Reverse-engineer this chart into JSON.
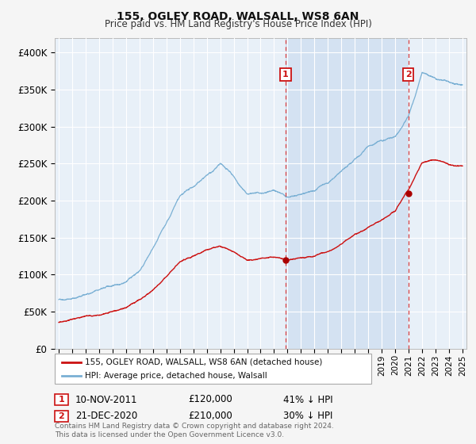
{
  "title": "155, OGLEY ROAD, WALSALL, WS8 6AN",
  "subtitle": "Price paid vs. HM Land Registry's House Price Index (HPI)",
  "background_color": "#f5f5f5",
  "plot_bg_color": "#e8f0f8",
  "ylim": [
    0,
    420000
  ],
  "yticks": [
    0,
    50000,
    100000,
    150000,
    200000,
    250000,
    300000,
    350000,
    400000
  ],
  "ytick_labels": [
    "£0",
    "£50K",
    "£100K",
    "£150K",
    "£200K",
    "£250K",
    "£300K",
    "£350K",
    "£400K"
  ],
  "xlim_start": 1994.7,
  "xlim_end": 2025.3,
  "sale1_date": "10-NOV-2011",
  "sale1_price": 120000,
  "sale1_pct": "41% ↓ HPI",
  "sale1_year": 2011.86,
  "sale2_date": "21-DEC-2020",
  "sale2_price": 210000,
  "sale2_pct": "30% ↓ HPI",
  "sale2_year": 2020.97,
  "legend_line1": "155, OGLEY ROAD, WALSALL, WS8 6AN (detached house)",
  "legend_line2": "HPI: Average price, detached house, Walsall",
  "footnote": "Contains HM Land Registry data © Crown copyright and database right 2024.\nThis data is licensed under the Open Government Licence v3.0.",
  "hpi_color": "#7ab0d4",
  "property_color": "#cc1111",
  "marker_color": "#aa0000",
  "vline_color": "#dd4444",
  "annotation_box_color": "#cc1111",
  "shade_color": "#ccddf0",
  "hpi_keypoints": [
    [
      1995,
      75000
    ],
    [
      1996,
      78000
    ],
    [
      1997,
      82000
    ],
    [
      1998,
      88000
    ],
    [
      1999,
      93000
    ],
    [
      2000,
      100000
    ],
    [
      2001,
      115000
    ],
    [
      2002,
      145000
    ],
    [
      2003,
      175000
    ],
    [
      2004,
      210000
    ],
    [
      2005,
      220000
    ],
    [
      2006,
      235000
    ],
    [
      2007,
      250000
    ],
    [
      2008,
      230000
    ],
    [
      2009,
      205000
    ],
    [
      2010,
      205000
    ],
    [
      2011,
      210000
    ],
    [
      2012,
      200000
    ],
    [
      2013,
      205000
    ],
    [
      2014,
      210000
    ],
    [
      2015,
      220000
    ],
    [
      2016,
      235000
    ],
    [
      2017,
      250000
    ],
    [
      2018,
      265000
    ],
    [
      2019,
      275000
    ],
    [
      2020,
      280000
    ],
    [
      2021,
      310000
    ],
    [
      2022,
      370000
    ],
    [
      2023,
      360000
    ],
    [
      2024,
      355000
    ],
    [
      2025,
      350000
    ]
  ],
  "prop_keypoints": [
    [
      1995,
      40000
    ],
    [
      1996,
      43000
    ],
    [
      1997,
      47000
    ],
    [
      1998,
      50000
    ],
    [
      1999,
      54000
    ],
    [
      2000,
      58000
    ],
    [
      2001,
      68000
    ],
    [
      2002,
      82000
    ],
    [
      2003,
      100000
    ],
    [
      2004,
      120000
    ],
    [
      2005,
      128000
    ],
    [
      2006,
      135000
    ],
    [
      2007,
      140000
    ],
    [
      2008,
      130000
    ],
    [
      2009,
      118000
    ],
    [
      2010,
      118000
    ],
    [
      2011,
      120000
    ],
    [
      2012,
      115000
    ],
    [
      2013,
      118000
    ],
    [
      2014,
      122000
    ],
    [
      2015,
      128000
    ],
    [
      2016,
      138000
    ],
    [
      2017,
      152000
    ],
    [
      2018,
      162000
    ],
    [
      2019,
      172000
    ],
    [
      2020,
      185000
    ],
    [
      2021,
      215000
    ],
    [
      2022,
      250000
    ],
    [
      2023,
      255000
    ],
    [
      2024,
      248000
    ],
    [
      2025,
      245000
    ]
  ]
}
